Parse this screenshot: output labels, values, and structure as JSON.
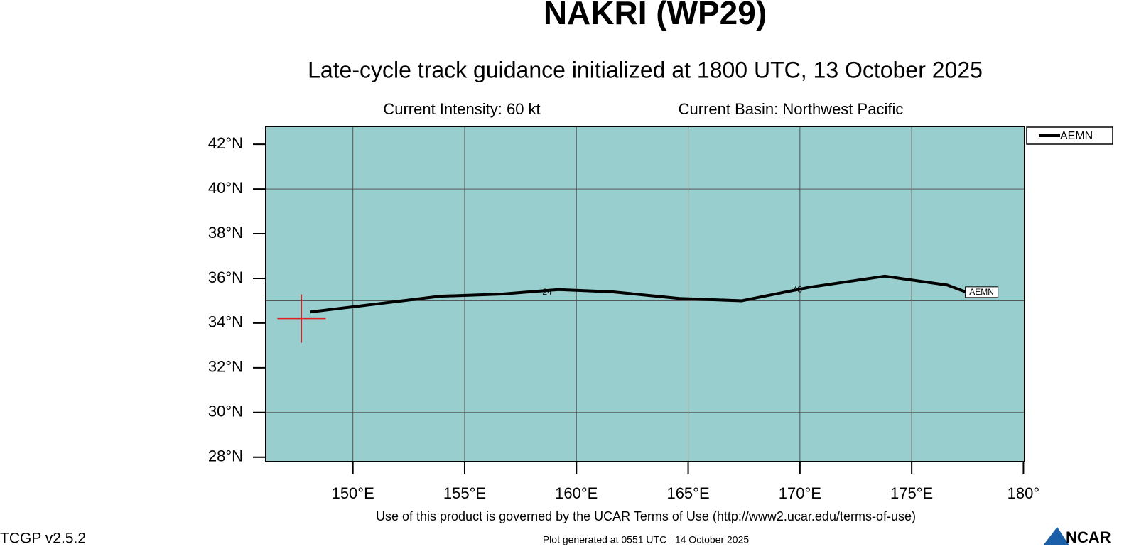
{
  "chart_data": {
    "type": "track",
    "title": "NAKRI (WP29)",
    "subtitle": "Late-cycle track guidance initialized at 1800 UTC, 13 October 2025",
    "annotations": [
      "Current Intensity: 60 kt",
      "Current Basin: Northwest Pacific"
    ],
    "xlim": [
      146.1,
      180.05
    ],
    "ylim": [
      27.8,
      42.8
    ],
    "xticks": [
      {
        "value": 150,
        "label": "150°E"
      },
      {
        "value": 155,
        "label": "155°E"
      },
      {
        "value": 160,
        "label": "160°E"
      },
      {
        "value": 165,
        "label": "165°E"
      },
      {
        "value": 170,
        "label": "170°E"
      },
      {
        "value": 175,
        "label": "175°E"
      },
      {
        "value": 180,
        "label": "180°"
      }
    ],
    "yticks": [
      {
        "value": 28,
        "label": "28°N"
      },
      {
        "value": 30,
        "label": "30°N"
      },
      {
        "value": 32,
        "label": "32°N"
      },
      {
        "value": 34,
        "label": "34°N"
      },
      {
        "value": 36,
        "label": "36°N"
      },
      {
        "value": 38,
        "label": "38°N"
      },
      {
        "value": 40,
        "label": "40°N"
      },
      {
        "value": 42,
        "label": "42°N"
      }
    ],
    "grid_x": [
      150,
      155,
      160,
      165,
      170,
      175
    ],
    "grid_y": [
      30,
      35,
      40
    ],
    "background": "#98cece",
    "current_position": {
      "x": 147.7,
      "y": 34.2,
      "color": "#e02020"
    },
    "series": [
      {
        "name": "AEMN",
        "color": "#000000",
        "x": [
          148.1,
          153.9,
          156.7,
          159.2,
          161.6,
          164.6,
          167.4,
          170.4,
          173.8,
          176.6,
          177.4
        ],
        "values": [
          34.5,
          35.2,
          35.3,
          35.5,
          35.4,
          35.1,
          35.0,
          35.6,
          36.1,
          35.7,
          35.4
        ],
        "point_labels": [
          null,
          null,
          null,
          "24",
          null,
          null,
          null,
          "48",
          null,
          null,
          null
        ]
      }
    ],
    "footer": "Use of this product is governed by the UCAR Terms of Use (http://www2.ucar.edu/terms-of-use)",
    "version": "TCGP v2.5.2",
    "generated": "Plot generated at 0551 UTC   14 October 2025",
    "logo": "NCAR"
  }
}
